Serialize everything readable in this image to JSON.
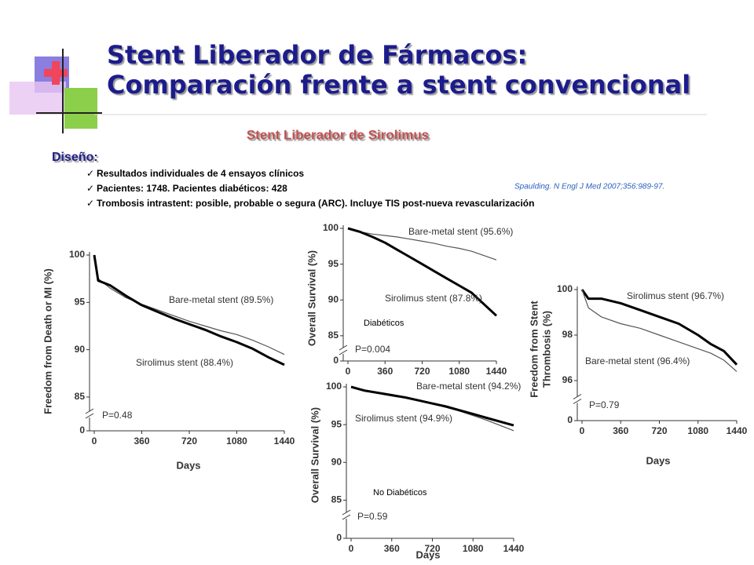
{
  "header": {
    "title_line1": "Stent Liberador de Fármacos:",
    "title_line2": "Comparación frente a stent convencional",
    "subtitle": "Stent Liberador de Sirolimus"
  },
  "design": {
    "heading": "Diseño:",
    "bullets": [
      "Resultados individuales de 4 ensayos clínicos",
      "Pacientes: 1748. Pacientes diabéticos: 428",
      "Trombosis intrastent: posible, probable o segura (ARC). Incluye TIS post-nueva revascularización"
    ],
    "citation": "Spaulding. N Engl J Med 2007;356:989-97."
  },
  "chart_data": [
    {
      "type": "line",
      "ylabel": [
        "Freedom from Death or MI (%)"
      ],
      "xlabel": "Days",
      "xlim": [
        0,
        1440
      ],
      "xticks": [
        0,
        360,
        720,
        1080,
        1440
      ],
      "ylim": [
        84,
        100
      ],
      "yticks": [
        85,
        90,
        95,
        100
      ],
      "ybreak_tick": 0,
      "p_value": "P=0.48",
      "series": [
        {
          "name": "Bare-metal stent (89.5%)",
          "color": "#555555",
          "line_width": 1.2,
          "x": [
            0,
            30,
            120,
            240,
            360,
            480,
            600,
            720,
            840,
            960,
            1080,
            1200,
            1320,
            1440
          ],
          "values": [
            100,
            97.5,
            96.5,
            95.5,
            94.8,
            94.2,
            93.6,
            93,
            92.5,
            92,
            91.6,
            91,
            90.3,
            89.5
          ]
        },
        {
          "name": "Sirolimus stent (88.4%)",
          "color": "#000000",
          "line_width": 3,
          "x": [
            0,
            30,
            120,
            240,
            360,
            480,
            600,
            720,
            840,
            960,
            1080,
            1200,
            1320,
            1440
          ],
          "values": [
            100,
            97.3,
            96.8,
            95.7,
            94.7,
            94,
            93.3,
            92.7,
            92.1,
            91.4,
            90.8,
            90.1,
            89.2,
            88.4
          ]
        }
      ]
    },
    {
      "type": "line",
      "ylabel": [
        "Overall Survival (%)"
      ],
      "xlim": [
        0,
        1440
      ],
      "xticks": [
        0,
        360,
        720,
        1080,
        1440
      ],
      "ylim": [
        84,
        100
      ],
      "yticks": [
        85,
        90,
        95,
        100
      ],
      "ybreak_tick": 0,
      "p_value": "P=0.004",
      "panel_label": "Diabéticos",
      "series": [
        {
          "name": "Bare-metal stent (95.6%)",
          "color": "#555555",
          "line_width": 1.2,
          "x": [
            0,
            120,
            240,
            360,
            480,
            600,
            720,
            840,
            960,
            1080,
            1200,
            1440
          ],
          "values": [
            100,
            99.5,
            99.2,
            99,
            98.8,
            98.5,
            98.2,
            97.9,
            97.5,
            97.2,
            96.8,
            95.6
          ]
        },
        {
          "name": "Sirolimus stent (87.8%)",
          "color": "#000000",
          "line_width": 3,
          "x": [
            0,
            120,
            240,
            360,
            480,
            600,
            720,
            840,
            960,
            1080,
            1200,
            1440
          ],
          "values": [
            100,
            99.5,
            98.8,
            98,
            97,
            96,
            95,
            94,
            93,
            92,
            91,
            87.8
          ]
        }
      ]
    },
    {
      "type": "line",
      "ylabel": [
        "Overall Survival (%)"
      ],
      "xlabel": "Days",
      "xlim": [
        0,
        1440
      ],
      "xticks": [
        0,
        360,
        720,
        1080,
        1440
      ],
      "ylim": [
        84,
        100
      ],
      "yticks": [
        85,
        90,
        95,
        100
      ],
      "ybreak_tick": 0,
      "p_value": "P=0.59",
      "panel_label": "No Diabéticos",
      "series": [
        {
          "name": "Bare-metal stent (94.2%)",
          "color": "#555555",
          "line_width": 1.2,
          "x": [
            0,
            120,
            240,
            360,
            480,
            600,
            720,
            840,
            960,
            1080,
            1200,
            1440
          ],
          "values": [
            100,
            99.6,
            99.3,
            99,
            98.6,
            98.2,
            97.8,
            97.3,
            96.8,
            96.2,
            95.6,
            94.2
          ]
        },
        {
          "name": "Sirolimus stent (94.9%)",
          "color": "#000000",
          "line_width": 3,
          "x": [
            0,
            120,
            240,
            360,
            480,
            600,
            720,
            840,
            960,
            1080,
            1200,
            1440
          ],
          "values": [
            100,
            99.5,
            99.2,
            98.9,
            98.6,
            98.2,
            97.8,
            97.4,
            96.9,
            96.4,
            95.9,
            94.9
          ]
        }
      ]
    },
    {
      "type": "line",
      "ylabel": [
        "Freedom from Stent",
        "Thrombosis (%)"
      ],
      "xlabel": "Days",
      "xlim": [
        0,
        1440
      ],
      "xticks": [
        0,
        360,
        720,
        1080,
        1440
      ],
      "ylim": [
        95.5,
        100
      ],
      "yticks": [
        96,
        98,
        100
      ],
      "ybreak_tick": 0,
      "p_value": "P=0.79",
      "series": [
        {
          "name": "Sirolimus stent (96.7%)",
          "color": "#000000",
          "line_width": 3,
          "x": [
            0,
            60,
            180,
            360,
            540,
            720,
            900,
            1080,
            1200,
            1320,
            1440
          ],
          "values": [
            100,
            99.6,
            99.6,
            99.4,
            99.1,
            98.8,
            98.5,
            98,
            97.6,
            97.3,
            96.7
          ]
        },
        {
          "name": "Bare-metal stent (96.4%)",
          "color": "#555555",
          "line_width": 1.2,
          "x": [
            0,
            60,
            180,
            360,
            540,
            720,
            900,
            1080,
            1200,
            1320,
            1440
          ],
          "values": [
            100,
            99.2,
            98.8,
            98.5,
            98.3,
            98,
            97.7,
            97.4,
            97.2,
            96.9,
            96.4
          ]
        }
      ]
    }
  ]
}
